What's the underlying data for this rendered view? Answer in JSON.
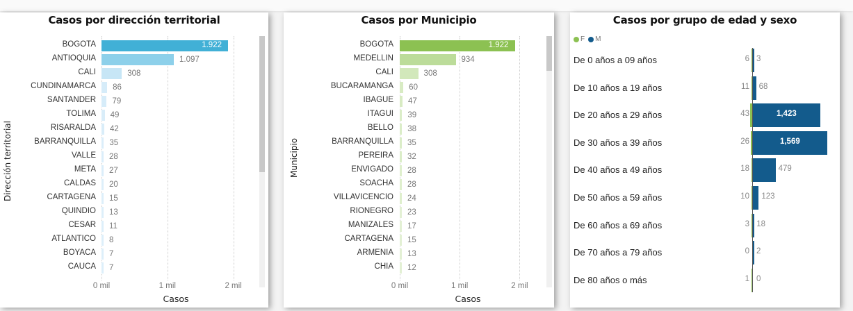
{
  "charts": {
    "territorial": {
      "title": "Casos por dirección territorial",
      "ylabel": "Dirección territorial",
      "xlabel": "Casos",
      "ticks": [
        "0 mil",
        "1 mil",
        "2 mil"
      ],
      "color_max": "#41b0d6",
      "items": [
        {
          "label": "BOGOTA",
          "value": 1922,
          "display": "1.922",
          "color": "#41b0d6"
        },
        {
          "label": "ANTIOQUIA",
          "value": 1097,
          "display": "1.097",
          "color": "#8dd0ea"
        },
        {
          "label": "CALI",
          "value": 308,
          "display": "308",
          "color": "#c7e6f6"
        },
        {
          "label": "CUNDINAMARCA",
          "value": 86,
          "display": "86",
          "color": "#d6ecf9"
        },
        {
          "label": "SANTANDER",
          "value": 79,
          "display": "79",
          "color": "#d6ecf9"
        },
        {
          "label": "TOLIMA",
          "value": 49,
          "display": "49",
          "color": "#d9edf9"
        },
        {
          "label": "RISARALDA",
          "value": 42,
          "display": "42",
          "color": "#d9edf9"
        },
        {
          "label": "BARRANQUILLA",
          "value": 35,
          "display": "35",
          "color": "#dbeefa"
        },
        {
          "label": "VALLE",
          "value": 28,
          "display": "28",
          "color": "#dbeefa"
        },
        {
          "label": "META",
          "value": 27,
          "display": "27",
          "color": "#dbeefa"
        },
        {
          "label": "CALDAS",
          "value": 20,
          "display": "20",
          "color": "#ddeffa"
        },
        {
          "label": "CARTAGENA",
          "value": 15,
          "display": "15",
          "color": "#ddeffa"
        },
        {
          "label": "QUINDIO",
          "value": 13,
          "display": "13",
          "color": "#ddeffa"
        },
        {
          "label": "CESAR",
          "value": 11,
          "display": "11",
          "color": "#ddeffa"
        },
        {
          "label": "ATLANTICO",
          "value": 8,
          "display": "8",
          "color": "#ddeffa"
        },
        {
          "label": "BOYACA",
          "value": 7,
          "display": "7",
          "color": "#ddeffa"
        },
        {
          "label": "CAUCA",
          "value": 7,
          "display": "7",
          "color": "#ddeffa"
        }
      ]
    },
    "municipio": {
      "title": "Casos por Municipio",
      "ylabel": "Municipio",
      "xlabel": "Casos",
      "ticks": [
        "0 mil",
        "1 mil",
        "2 mil"
      ],
      "items": [
        {
          "label": "BOGOTA",
          "value": 1922,
          "display": "1.922",
          "color": "#8cc152"
        },
        {
          "label": "MEDELLIN",
          "value": 934,
          "display": "934",
          "color": "#bcdc9a"
        },
        {
          "label": "CALI",
          "value": 308,
          "display": "308",
          "color": "#d2e8bb"
        },
        {
          "label": "BUCARAMANGA",
          "value": 60,
          "display": "60",
          "color": "#d8ebc3"
        },
        {
          "label": "IBAGUE",
          "value": 47,
          "display": "47",
          "color": "#d8ebc3"
        },
        {
          "label": "ITAGUI",
          "value": 39,
          "display": "39",
          "color": "#dbedc8"
        },
        {
          "label": "BELLO",
          "value": 38,
          "display": "38",
          "color": "#dbedc8"
        },
        {
          "label": "BARRANQUILLA",
          "value": 35,
          "display": "35",
          "color": "#dbedc8"
        },
        {
          "label": "PEREIRA",
          "value": 32,
          "display": "32",
          "color": "#dbedc8"
        },
        {
          "label": "ENVIGADO",
          "value": 28,
          "display": "28",
          "color": "#dfefcd"
        },
        {
          "label": "SOACHA",
          "value": 28,
          "display": "28",
          "color": "#dfefcd"
        },
        {
          "label": "VILLAVICENCIO",
          "value": 24,
          "display": "24",
          "color": "#dfefcd"
        },
        {
          "label": "RIONEGRO",
          "value": 23,
          "display": "23",
          "color": "#e3f0d4"
        },
        {
          "label": "MANIZALES",
          "value": 17,
          "display": "17",
          "color": "#e3f0d4"
        },
        {
          "label": "CARTAGENA",
          "value": 15,
          "display": "15",
          "color": "#e3f0d4"
        },
        {
          "label": "ARMENIA",
          "value": 13,
          "display": "13",
          "color": "#e3f0d4"
        },
        {
          "label": "CHIA",
          "value": 12,
          "display": "12",
          "color": "#e3f0d4"
        }
      ]
    },
    "edad_sexo": {
      "title": "Casos por grupo de edad y sexo",
      "legend": [
        {
          "label": "F",
          "color": "#8cc152"
        },
        {
          "label": "M",
          "color": "#135b8c"
        }
      ],
      "rows": [
        {
          "label": "De 0 años a 09 años",
          "f": 6,
          "m": 3,
          "f_display": "6",
          "m_display": "3"
        },
        {
          "label": "De 10 años a 19 años",
          "f": 11,
          "m": 68,
          "f_display": "11",
          "m_display": "68"
        },
        {
          "label": "De 20 años a 29 años",
          "f": 43,
          "m": 1423,
          "f_display": "43",
          "m_display": "1,423"
        },
        {
          "label": "De 30 años a 39 años",
          "f": 26,
          "m": 1569,
          "f_display": "26",
          "m_display": "1,569"
        },
        {
          "label": "De 40 años a 49 años",
          "f": 18,
          "m": 479,
          "f_display": "18",
          "m_display": "479"
        },
        {
          "label": "De 50 años a 59 años",
          "f": 10,
          "m": 123,
          "f_display": "10",
          "m_display": "123"
        },
        {
          "label": "De 60 años a 69 años",
          "f": 3,
          "m": 18,
          "f_display": "3",
          "m_display": "18"
        },
        {
          "label": "De 70 años a 79 años",
          "f": 0,
          "m": 2,
          "f_display": "0",
          "m_display": "2"
        },
        {
          "label": "De 80 años o más",
          "f": 1,
          "m": 0,
          "f_display": "1",
          "m_display": "0"
        }
      ]
    }
  },
  "chart_data": [
    {
      "type": "bar",
      "orientation": "horizontal",
      "title": "Casos por dirección territorial",
      "xlabel": "Casos",
      "ylabel": "Dirección territorial",
      "xlim": [
        0,
        2000
      ],
      "x_ticks": [
        "0 mil",
        "1 mil",
        "2 mil"
      ],
      "grid": true,
      "categories": [
        "BOGOTA",
        "ANTIOQUIA",
        "CALI",
        "CUNDINAMARCA",
        "SANTANDER",
        "TOLIMA",
        "RISARALDA",
        "BARRANQUILLA",
        "VALLE",
        "META",
        "CALDAS",
        "CARTAGENA",
        "QUINDIO",
        "CESAR",
        "ATLANTICO",
        "BOYACA",
        "CAUCA"
      ],
      "values": [
        1922,
        1097,
        308,
        86,
        79,
        49,
        42,
        35,
        28,
        27,
        20,
        15,
        13,
        11,
        8,
        7,
        7
      ]
    },
    {
      "type": "bar",
      "orientation": "horizontal",
      "title": "Casos por Municipio",
      "xlabel": "Casos",
      "ylabel": "Municipio",
      "xlim": [
        0,
        2000
      ],
      "x_ticks": [
        "0 mil",
        "1 mil",
        "2 mil"
      ],
      "grid": true,
      "categories": [
        "BOGOTA",
        "MEDELLIN",
        "CALI",
        "BUCARAMANGA",
        "IBAGUE",
        "ITAGUI",
        "BELLO",
        "BARRANQUILLA",
        "PEREIRA",
        "ENVIGADO",
        "SOACHA",
        "VILLAVICENCIO",
        "RIONEGRO",
        "MANIZALES",
        "CARTAGENA",
        "ARMENIA",
        "CHIA"
      ],
      "values": [
        1922,
        934,
        308,
        60,
        47,
        39,
        38,
        35,
        32,
        28,
        28,
        24,
        23,
        17,
        15,
        13,
        12
      ]
    },
    {
      "type": "bar",
      "orientation": "horizontal",
      "subtype": "population-pyramid",
      "title": "Casos por grupo de edad y sexo",
      "legend_position": "top-left",
      "categories": [
        "De 0 años a 09 años",
        "De 10 años a 19 años",
        "De 20 años a 29 años",
        "De 30 años a 39 años",
        "De 40 años a 49 años",
        "De 50 años a 59 años",
        "De 60 años a 69 años",
        "De 70 años a 79 años",
        "De 80 años o más"
      ],
      "series": [
        {
          "name": "F",
          "color": "#8cc152",
          "values": [
            6,
            11,
            43,
            26,
            18,
            10,
            3,
            0,
            1
          ]
        },
        {
          "name": "M",
          "color": "#135b8c",
          "values": [
            3,
            68,
            1423,
            1569,
            479,
            123,
            18,
            2,
            0
          ]
        }
      ]
    }
  ]
}
